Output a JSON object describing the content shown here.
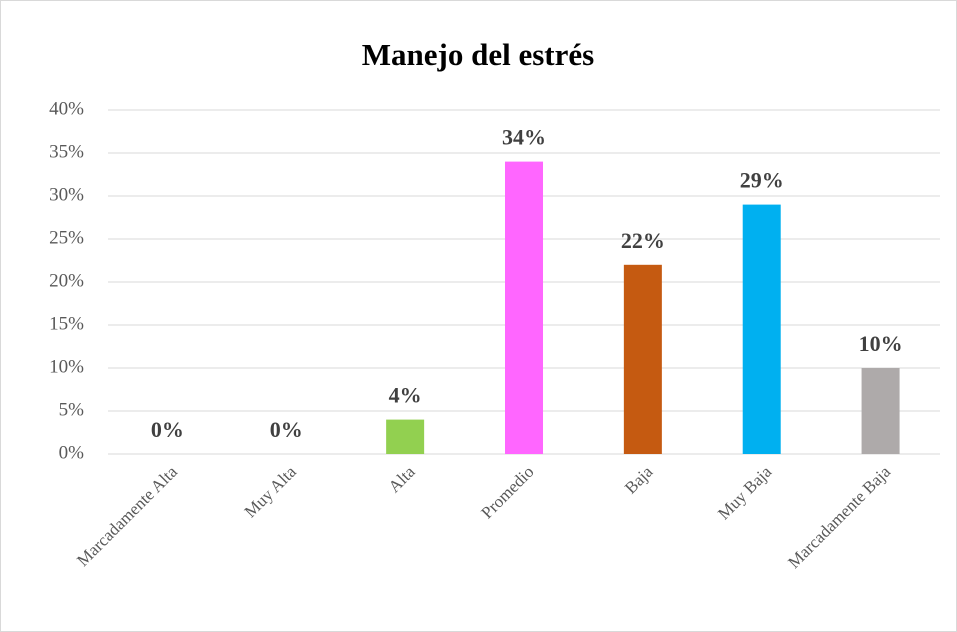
{
  "chart_data": {
    "type": "bar",
    "title": "Manejo del estrés",
    "categories": [
      "Marcadamente Alta",
      "Muy Alta",
      "Alta",
      "Promedio",
      "Baja",
      "Muy Baja",
      "Marcadamente Baja"
    ],
    "values": [
      0,
      0,
      4,
      34,
      22,
      29,
      10
    ],
    "value_labels": [
      "0%",
      "0%",
      "4%",
      "34%",
      "22%",
      "29%",
      "10%"
    ],
    "colors": [
      "#4472c4",
      "#ed7d31",
      "#92d050",
      "#ff66ff",
      "#c55a11",
      "#00b0f0",
      "#aeaaaa"
    ],
    "ylim": [
      0,
      40
    ],
    "yticks": [
      {
        "value": 0,
        "label": "0%"
      },
      {
        "value": 5,
        "label": "5%"
      },
      {
        "value": 10,
        "label": "10%"
      },
      {
        "value": 15,
        "label": "15%"
      },
      {
        "value": 20,
        "label": "20%"
      },
      {
        "value": 25,
        "label": "25%"
      },
      {
        "value": 30,
        "label": "30%"
      },
      {
        "value": 35,
        "label": "35%"
      },
      {
        "value": 40,
        "label": "40%"
      }
    ],
    "grid": true
  }
}
